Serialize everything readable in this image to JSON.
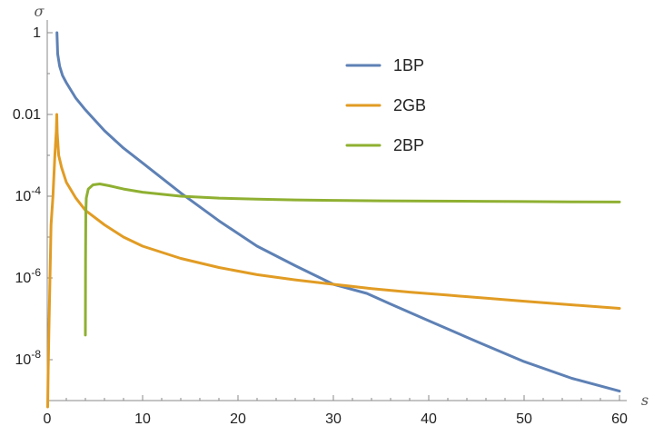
{
  "chart_data": {
    "type": "line",
    "title": "",
    "xlabel": "s",
    "ylabel": "σ",
    "xlim": [
      0,
      60
    ],
    "ylim": [
      1e-09,
      1
    ],
    "y_scale": "log",
    "grid": false,
    "legend_position": "top-right",
    "x_ticks": [
      {
        "value": 0,
        "label": "0"
      },
      {
        "value": 10,
        "label": "10"
      },
      {
        "value": 20,
        "label": "20"
      },
      {
        "value": 30,
        "label": "30"
      },
      {
        "value": 40,
        "label": "40"
      },
      {
        "value": 50,
        "label": "50"
      },
      {
        "value": 60,
        "label": "60"
      }
    ],
    "y_ticks": [
      {
        "value": 1,
        "mantissa": "1",
        "exp": ""
      },
      {
        "value": 0.01,
        "mantissa": "0.01",
        "exp": ""
      },
      {
        "value": 0.0001,
        "mantissa": "10",
        "exp": "-4"
      },
      {
        "value": 1e-06,
        "mantissa": "10",
        "exp": "-6"
      },
      {
        "value": 1e-08,
        "mantissa": "10",
        "exp": "-8"
      }
    ],
    "series": [
      {
        "name": "1BP",
        "color": "#5e81b5",
        "points": [
          [
            1.02,
            1.0
          ],
          [
            1.1,
            0.3
          ],
          [
            1.3,
            0.15
          ],
          [
            1.6,
            0.09
          ],
          [
            2,
            0.06
          ],
          [
            3,
            0.025
          ],
          [
            4,
            0.013
          ],
          [
            6,
            0.004
          ],
          [
            8,
            0.0015
          ],
          [
            10,
            0.00065
          ],
          [
            14,
            0.00012
          ],
          [
            18,
            2.5e-05
          ],
          [
            22,
            6e-06
          ],
          [
            26,
            2e-06
          ],
          [
            30,
            7e-07
          ],
          [
            33.5,
            4.2e-07
          ],
          [
            36,
            2.3e-07
          ],
          [
            40,
            9e-08
          ],
          [
            45,
            2.8e-08
          ],
          [
            50,
            9e-09
          ],
          [
            55,
            3.5e-09
          ],
          [
            60,
            1.7e-09
          ]
        ]
      },
      {
        "name": "2GB",
        "color": "#e19c24",
        "points": [
          [
            0.05,
            7e-10
          ],
          [
            0.1,
            5e-09
          ],
          [
            0.2,
            1e-07
          ],
          [
            0.4,
            2e-05
          ],
          [
            0.6,
            0.0001
          ],
          [
            0.8,
            0.001
          ],
          [
            0.95,
            0.004
          ],
          [
            1.0,
            0.01
          ],
          [
            1.05,
            0.0035
          ],
          [
            1.2,
            0.001
          ],
          [
            1.5,
            0.0005
          ],
          [
            2,
            0.00022
          ],
          [
            3,
            9e-05
          ],
          [
            4,
            4.5e-05
          ],
          [
            6,
            2e-05
          ],
          [
            8,
            1e-05
          ],
          [
            10,
            6e-06
          ],
          [
            14,
            3e-06
          ],
          [
            18,
            1.8e-06
          ],
          [
            22,
            1.2e-06
          ],
          [
            26,
            9e-07
          ],
          [
            30,
            7e-07
          ],
          [
            34,
            5.5e-07
          ],
          [
            38,
            4.5e-07
          ],
          [
            42,
            3.8e-07
          ],
          [
            46,
            3.2e-07
          ],
          [
            50,
            2.7e-07
          ],
          [
            55,
            2.2e-07
          ],
          [
            60,
            1.8e-07
          ]
        ]
      },
      {
        "name": "2BP",
        "color": "#8fb032",
        "points": [
          [
            4.0,
            4e-08
          ],
          [
            4.02,
            3e-06
          ],
          [
            4.05,
            4e-05
          ],
          [
            4.1,
            9e-05
          ],
          [
            4.3,
            0.00015
          ],
          [
            4.8,
            0.00019
          ],
          [
            5.5,
            0.0002
          ],
          [
            6.5,
            0.00018
          ],
          [
            8,
            0.00015
          ],
          [
            10,
            0.000125
          ],
          [
            14,
            0.0001
          ],
          [
            18,
            9e-05
          ],
          [
            22,
            8.5e-05
          ],
          [
            26,
            8.1e-05
          ],
          [
            30,
            7.9e-05
          ],
          [
            35,
            7.7e-05
          ],
          [
            40,
            7.6e-05
          ],
          [
            45,
            7.5e-05
          ],
          [
            50,
            7.4e-05
          ],
          [
            55,
            7.3e-05
          ],
          [
            60,
            7.2e-05
          ]
        ]
      }
    ]
  }
}
